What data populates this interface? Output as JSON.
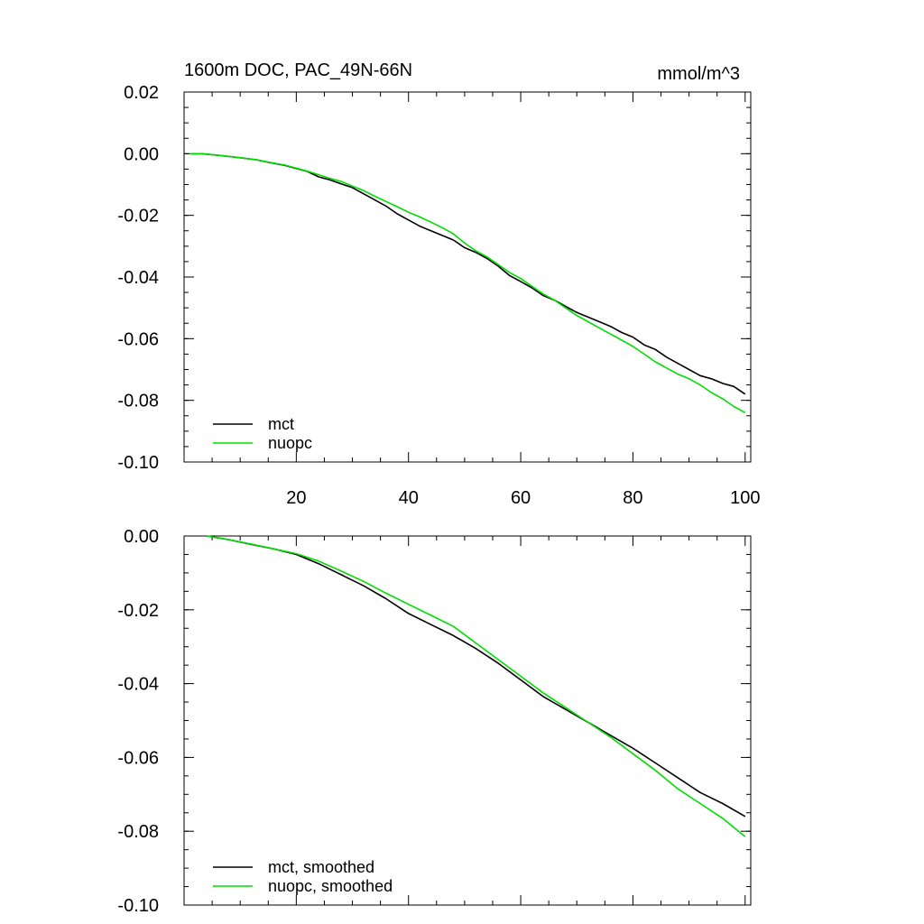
{
  "chart_data": [
    {
      "type": "line",
      "title": "1600m DOC, PAC_49N-66N",
      "units": "mmol/m^3",
      "xlabel": "",
      "ylabel": "",
      "xlim": [
        0,
        101
      ],
      "ylim": [
        -0.1,
        0.02
      ],
      "x_ticks": [
        20,
        40,
        60,
        80,
        100
      ],
      "x_tick_labels": [
        "20",
        "40",
        "60",
        "80",
        "100"
      ],
      "y_ticks": [
        0.02,
        0.0,
        -0.02,
        -0.04,
        -0.06,
        -0.08,
        -0.1
      ],
      "y_tick_labels": [
        "0.02",
        "0.00",
        "-0.02",
        "-0.04",
        "-0.06",
        "-0.08",
        "-0.10"
      ],
      "grid": false,
      "legend_position": "bottom-left",
      "series": [
        {
          "name": "mct",
          "color": "#000000",
          "points": [
            [
              1,
              0.0
            ],
            [
              3,
              0.0
            ],
            [
              5,
              -0.0003
            ],
            [
              7,
              -0.0007
            ],
            [
              10,
              -0.0013
            ],
            [
              13,
              -0.002
            ],
            [
              15,
              -0.0028
            ],
            [
              18,
              -0.0038
            ],
            [
              20,
              -0.0048
            ],
            [
              22,
              -0.0058
            ],
            [
              24,
              -0.0075
            ],
            [
              26,
              -0.0085
            ],
            [
              28,
              -0.0098
            ],
            [
              30,
              -0.011
            ],
            [
              32,
              -0.013
            ],
            [
              34,
              -0.015
            ],
            [
              36,
              -0.017
            ],
            [
              38,
              -0.0195
            ],
            [
              40,
              -0.0215
            ],
            [
              42,
              -0.0235
            ],
            [
              44,
              -0.025
            ],
            [
              46,
              -0.0265
            ],
            [
              48,
              -0.028
            ],
            [
              50,
              -0.0305
            ],
            [
              52,
              -0.032
            ],
            [
              54,
              -0.034
            ],
            [
              56,
              -0.0365
            ],
            [
              58,
              -0.0395
            ],
            [
              60,
              -0.0415
            ],
            [
              62,
              -0.0435
            ],
            [
              64,
              -0.046
            ],
            [
              66,
              -0.0475
            ],
            [
              68,
              -0.0495
            ],
            [
              70,
              -0.0515
            ],
            [
              72,
              -0.053
            ],
            [
              74,
              -0.0545
            ],
            [
              76,
              -0.056
            ],
            [
              78,
              -0.058
            ],
            [
              80,
              -0.0595
            ],
            [
              82,
              -0.062
            ],
            [
              84,
              -0.0635
            ],
            [
              86,
              -0.066
            ],
            [
              88,
              -0.068
            ],
            [
              90,
              -0.07
            ],
            [
              92,
              -0.072
            ],
            [
              94,
              -0.073
            ],
            [
              96,
              -0.0745
            ],
            [
              98,
              -0.0755
            ],
            [
              100,
              -0.078
            ]
          ]
        },
        {
          "name": "nuopc",
          "color": "#00dd00",
          "points": [
            [
              1,
              0.0
            ],
            [
              3,
              0.0
            ],
            [
              5,
              -0.0003
            ],
            [
              7,
              -0.0007
            ],
            [
              10,
              -0.0013
            ],
            [
              13,
              -0.002
            ],
            [
              15,
              -0.0027
            ],
            [
              18,
              -0.0037
            ],
            [
              20,
              -0.0047
            ],
            [
              22,
              -0.0057
            ],
            [
              24,
              -0.0068
            ],
            [
              26,
              -0.008
            ],
            [
              28,
              -0.009
            ],
            [
              30,
              -0.0105
            ],
            [
              32,
              -0.012
            ],
            [
              34,
              -0.0138
            ],
            [
              36,
              -0.0155
            ],
            [
              38,
              -0.0172
            ],
            [
              40,
              -0.019
            ],
            [
              42,
              -0.0205
            ],
            [
              44,
              -0.0222
            ],
            [
              46,
              -0.024
            ],
            [
              48,
              -0.026
            ],
            [
              50,
              -0.029
            ],
            [
              52,
              -0.0315
            ],
            [
              54,
              -0.0335
            ],
            [
              56,
              -0.036
            ],
            [
              58,
              -0.0385
            ],
            [
              60,
              -0.0405
            ],
            [
              62,
              -0.043
            ],
            [
              64,
              -0.0455
            ],
            [
              66,
              -0.0475
            ],
            [
              68,
              -0.05
            ],
            [
              70,
              -0.0525
            ],
            [
              72,
              -0.0545
            ],
            [
              74,
              -0.0565
            ],
            [
              76,
              -0.0585
            ],
            [
              78,
              -0.0605
            ],
            [
              80,
              -0.0625
            ],
            [
              82,
              -0.065
            ],
            [
              84,
              -0.0675
            ],
            [
              86,
              -0.0695
            ],
            [
              88,
              -0.0715
            ],
            [
              90,
              -0.073
            ],
            [
              92,
              -0.075
            ],
            [
              94,
              -0.0775
            ],
            [
              96,
              -0.0795
            ],
            [
              98,
              -0.082
            ],
            [
              100,
              -0.084
            ]
          ]
        }
      ]
    },
    {
      "type": "line",
      "title": "",
      "xlabel": "",
      "ylabel": "",
      "xlim": [
        0,
        101
      ],
      "ylim": [
        -0.1,
        0.0
      ],
      "x_ticks": [
        20,
        40,
        60,
        80,
        100
      ],
      "x_tick_labels": [],
      "y_ticks": [
        0.0,
        -0.02,
        -0.04,
        -0.06,
        -0.08,
        -0.1
      ],
      "y_tick_labels": [
        "0.00",
        "-0.02",
        "-0.04",
        "-0.06",
        "-0.08",
        "-0.10"
      ],
      "grid": false,
      "legend_position": "bottom-left",
      "series": [
        {
          "name": "mct, smoothed",
          "color": "#000000",
          "points": [
            [
              4,
              0.0
            ],
            [
              8,
              -0.001
            ],
            [
              12,
              -0.0023
            ],
            [
              16,
              -0.0035
            ],
            [
              20,
              -0.005
            ],
            [
              24,
              -0.0075
            ],
            [
              28,
              -0.0105
            ],
            [
              32,
              -0.0135
            ],
            [
              36,
              -0.017
            ],
            [
              40,
              -0.021
            ],
            [
              44,
              -0.024
            ],
            [
              48,
              -0.027
            ],
            [
              52,
              -0.0305
            ],
            [
              56,
              -0.0345
            ],
            [
              60,
              -0.039
            ],
            [
              64,
              -0.0435
            ],
            [
              68,
              -0.047
            ],
            [
              72,
              -0.0505
            ],
            [
              76,
              -0.054
            ],
            [
              80,
              -0.0575
            ],
            [
              84,
              -0.0615
            ],
            [
              88,
              -0.0655
            ],
            [
              92,
              -0.0695
            ],
            [
              96,
              -0.0725
            ],
            [
              100,
              -0.076
            ]
          ]
        },
        {
          "name": "nuopc, smoothed",
          "color": "#00dd00",
          "points": [
            [
              4,
              0.0
            ],
            [
              8,
              -0.001
            ],
            [
              12,
              -0.0022
            ],
            [
              16,
              -0.0035
            ],
            [
              20,
              -0.0048
            ],
            [
              24,
              -0.0068
            ],
            [
              28,
              -0.0095
            ],
            [
              32,
              -0.0123
            ],
            [
              36,
              -0.0155
            ],
            [
              40,
              -0.0185
            ],
            [
              44,
              -0.0215
            ],
            [
              48,
              -0.0245
            ],
            [
              52,
              -0.029
            ],
            [
              56,
              -0.0335
            ],
            [
              60,
              -0.038
            ],
            [
              64,
              -0.0425
            ],
            [
              68,
              -0.0465
            ],
            [
              72,
              -0.0505
            ],
            [
              76,
              -0.0545
            ],
            [
              80,
              -0.059
            ],
            [
              84,
              -0.0635
            ],
            [
              88,
              -0.0685
            ],
            [
              92,
              -0.0725
            ],
            [
              96,
              -0.0765
            ],
            [
              100,
              -0.0815
            ]
          ]
        }
      ]
    }
  ]
}
